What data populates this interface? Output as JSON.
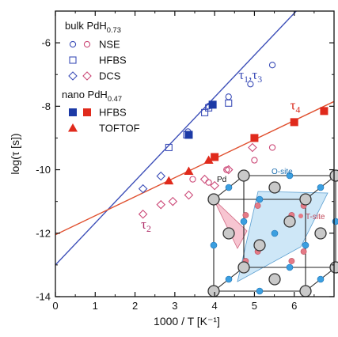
{
  "chart_data": {
    "type": "scatter",
    "xlabel": "1000 / T [K⁻¹]",
    "ylabel": "log(τ [s])",
    "xlim": [
      0,
      7
    ],
    "ylim": [
      -14,
      -5
    ],
    "xticks": [
      "0",
      "1",
      "2",
      "3",
      "4",
      "5",
      "6"
    ],
    "yticks": [
      "-14",
      "-12",
      "-10",
      "-8",
      "-6"
    ],
    "grid": false,
    "legend": {
      "bulk_header": "bulk PdH",
      "bulk_sub": "0.73",
      "nano_header": "nano PdH",
      "nano_sub": "0.47",
      "bulk_rows": [
        "NSE",
        "HFBS",
        "DCS"
      ],
      "nano_rows": [
        "HFBS",
        "TOFTOF"
      ]
    },
    "series": [
      {
        "name": "NSE",
        "group": "bulk",
        "marker": "circle-open",
        "color": "#3d4fb8",
        "x": [
          3.33,
          3.35,
          3.85,
          4.35,
          4.9,
          5.45
        ],
        "y": [
          -8.8,
          -8.9,
          -8.0,
          -7.7,
          -7.3,
          -6.7
        ]
      },
      {
        "name": "NSE",
        "group": "bulk",
        "marker": "circle-open",
        "color": "#cc4a78",
        "x": [
          3.45,
          3.85,
          4.3,
          5.0,
          5.45
        ],
        "y": [
          -10.3,
          -10.4,
          -10.0,
          -9.7,
          -9.3
        ]
      },
      {
        "name": "HFBS",
        "group": "bulk",
        "marker": "square-open",
        "color": "#3d4fb8",
        "x": [
          2.85,
          3.3,
          3.75,
          3.85,
          4.35
        ],
        "y": [
          -9.3,
          -8.9,
          -8.2,
          -8.05,
          -7.9
        ]
      },
      {
        "name": "DCS",
        "group": "bulk",
        "marker": "diamond-open",
        "color": "#3d4fb8",
        "x": [
          2.2,
          2.65
        ],
        "y": [
          -10.6,
          -10.2
        ]
      },
      {
        "name": "DCS",
        "group": "bulk",
        "marker": "diamond-open",
        "color": "#cc4a78",
        "x": [
          2.2,
          2.65,
          2.95,
          3.35,
          3.75,
          4.0,
          4.35,
          4.95
        ],
        "y": [
          -11.4,
          -11.1,
          -11.0,
          -10.8,
          -10.3,
          -10.5,
          -10.0,
          -9.3
        ]
      },
      {
        "name": "HFBS",
        "group": "nano",
        "marker": "square-filled",
        "color": "#1c3aa6",
        "x": [
          3.35,
          3.95
        ],
        "y": [
          -8.9,
          -7.95
        ]
      },
      {
        "name": "HFBS",
        "group": "nano",
        "marker": "square-filled",
        "color": "#e02a1c",
        "x": [
          4.0,
          5.0,
          6.0,
          6.75
        ],
        "y": [
          -9.6,
          -9.0,
          -8.5,
          -8.15
        ]
      },
      {
        "name": "TOFTOF",
        "group": "nano",
        "marker": "triangle-filled",
        "color": "#e02a1c",
        "x": [
          2.85,
          3.35,
          3.85
        ],
        "y": [
          -10.35,
          -10.05,
          -9.7
        ]
      }
    ],
    "fits": [
      {
        "color": "#3d4fb8",
        "x": [
          0,
          6.05
        ],
        "y": [
          -13.0,
          -5.0
        ]
      },
      {
        "color": "#e0502f",
        "x": [
          0,
          7.0
        ],
        "y": [
          -12.05,
          -7.85
        ]
      }
    ],
    "annotations": [
      {
        "text": "τ",
        "sub": "1",
        "text2": ",τ",
        "sub2": "3",
        "color": "#3d4fb8",
        "x": 4.6,
        "y": -7.15
      },
      {
        "text": "τ",
        "sub": "4",
        "color": "#d92a1c",
        "x": 5.9,
        "y": -8.1
      },
      {
        "text": "τ",
        "sub": "2",
        "color": "#b0306a",
        "x": 2.15,
        "y": -11.85
      }
    ],
    "inset": {
      "labels": {
        "pd": "Pd",
        "osite": "O-site",
        "tsite": "T-site"
      },
      "colors": {
        "pd": "#c9c9c9",
        "osite": "#3b9fe0",
        "tsite": "#e57a86"
      }
    }
  }
}
